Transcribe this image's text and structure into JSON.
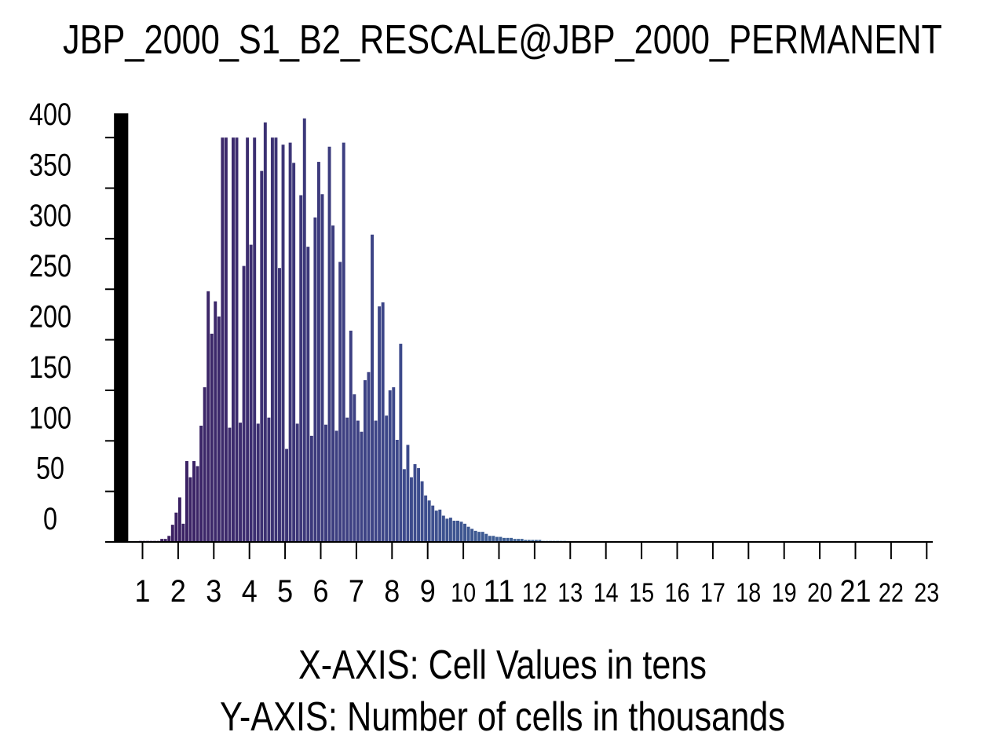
{
  "chart_data": {
    "type": "bar",
    "title": "JBP_2000_S1_B2_RESCALE@JBP_2000_PERMANENT",
    "xlabel": "X-AXIS: Cell Values in tens",
    "ylabel": "Y-AXIS: Number of cells in thousands",
    "ylim": [
      0,
      425
    ],
    "yticks": [
      0,
      50,
      100,
      150,
      200,
      250,
      300,
      350,
      400
    ],
    "ytick_labels": [
      "0",
      "50",
      "100",
      "150",
      "200",
      "250",
      "300",
      "350",
      "400"
    ],
    "xticks": [
      1,
      2,
      3,
      4,
      5,
      6,
      7,
      8,
      9,
      10,
      11,
      12,
      13,
      14,
      15,
      16,
      17,
      18,
      19,
      20,
      21,
      22,
      23
    ],
    "xtick_labels": [
      "1",
      "2",
      "3",
      "4",
      "5",
      "6",
      "7",
      "8",
      "9",
      "10",
      "11",
      "12",
      "13",
      "14",
      "15",
      "16",
      "17",
      "18",
      "19",
      "20",
      "21",
      "22",
      "23"
    ],
    "xtick_large": [
      "1",
      "2",
      "3",
      "4",
      "5",
      "6",
      "7",
      "8",
      "9",
      "11",
      "21"
    ],
    "xlim": [
      0,
      23.2
    ],
    "bar_width": 0.1,
    "null_bar": {
      "x": 0.2,
      "width": 0.4,
      "value": 424,
      "color": "#000000"
    },
    "bar_x_start": 0.9,
    "values": [
      1,
      1,
      1,
      1,
      1,
      1,
      3,
      3,
      6,
      17,
      29,
      44,
      18,
      80,
      64,
      80,
      75,
      115,
      153,
      248,
      206,
      238,
      223,
      400,
      400,
      113,
      400,
      400,
      118,
      273,
      400,
      294,
      400,
      117,
      367,
      415,
      123,
      400,
      400,
      271,
      393,
      92,
      395,
      375,
      117,
      343,
      419,
      292,
      105,
      321,
      376,
      344,
      116,
      391,
      313,
      110,
      277,
      395,
      123,
      209,
      146,
      120,
      109,
      160,
      168,
      304,
      120,
      233,
      237,
      125,
      150,
      153,
      101,
      196,
      72,
      96,
      64,
      77,
      73,
      60,
      46,
      41,
      36,
      31,
      32,
      26,
      23,
      24,
      21,
      21,
      20,
      18,
      15,
      13,
      11,
      10,
      10,
      8,
      6,
      6,
      5,
      5,
      4,
      4,
      4,
      3,
      3,
      3,
      2,
      2,
      2,
      2,
      2,
      1,
      1,
      1,
      1,
      1,
      1,
      1,
      0,
      0,
      0,
      0,
      0,
      0,
      0,
      0,
      0,
      0,
      0,
      0,
      0,
      0,
      0,
      0,
      0,
      0,
      0,
      0,
      0,
      0,
      0,
      0,
      0,
      0,
      0,
      0,
      0,
      0,
      0,
      0,
      0,
      0,
      0,
      0,
      0,
      0,
      0,
      0,
      0,
      0,
      0,
      0,
      0,
      0,
      0,
      0,
      0,
      0,
      0,
      0,
      0,
      0,
      0,
      0,
      0,
      0,
      0,
      0,
      0,
      0,
      0,
      0,
      0,
      0,
      0,
      0,
      0,
      0,
      0,
      0,
      0,
      0,
      0,
      0,
      0,
      0,
      0,
      0,
      0,
      0,
      0,
      0,
      0,
      0,
      0,
      0,
      0,
      0,
      0,
      0,
      0,
      0,
      0,
      0,
      0,
      0,
      0,
      0,
      0,
      0,
      0,
      0
    ],
    "colormap": [
      "#3b1a5c",
      "#3d4a8c",
      "#3d7fa0",
      "#5bb88a"
    ],
    "grid": false,
    "legend": "none"
  }
}
